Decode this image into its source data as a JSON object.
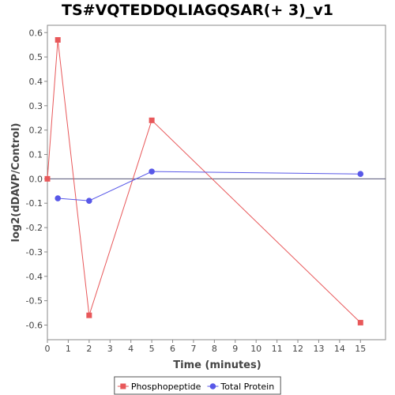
{
  "chart_data": {
    "type": "line",
    "title": "TS#VQTEDDQLIAGQSAR(+ 3)_v1",
    "xlabel": "Time (minutes)",
    "ylabel": "log2(dDAVP/Control)",
    "xlim": [
      0,
      16.2
    ],
    "ylim": [
      -0.66,
      0.63
    ],
    "xticks": [
      0,
      1,
      2,
      3,
      4,
      5,
      6,
      7,
      8,
      9,
      10,
      11,
      12,
      13,
      14,
      15
    ],
    "yticks": [
      -0.6,
      -0.5,
      -0.4,
      -0.3,
      -0.2,
      -0.1,
      0.0,
      0.1,
      0.2,
      0.3,
      0.4,
      0.5,
      0.6
    ],
    "ytick_labels": [
      "-0.6",
      "-0.5",
      "-0.4",
      "-0.3",
      "-0.2",
      "-0.1",
      "0.0",
      "0.1",
      "0.2",
      "0.3",
      "0.4",
      "0.5",
      "0.6"
    ],
    "grid": false,
    "zero_line": true,
    "legend_position": "bottom",
    "series": [
      {
        "name": "Phosphopeptide",
        "color": "#e8585a",
        "marker": "square",
        "x": [
          0,
          0.5,
          2,
          5,
          15
        ],
        "y": [
          0.0,
          0.57,
          -0.56,
          0.24,
          -0.59
        ]
      },
      {
        "name": "Total Protein",
        "color": "#5858e8",
        "marker": "circle",
        "x": [
          0.5,
          2,
          5,
          15
        ],
        "y": [
          -0.08,
          -0.09,
          0.03,
          0.02
        ]
      }
    ]
  }
}
